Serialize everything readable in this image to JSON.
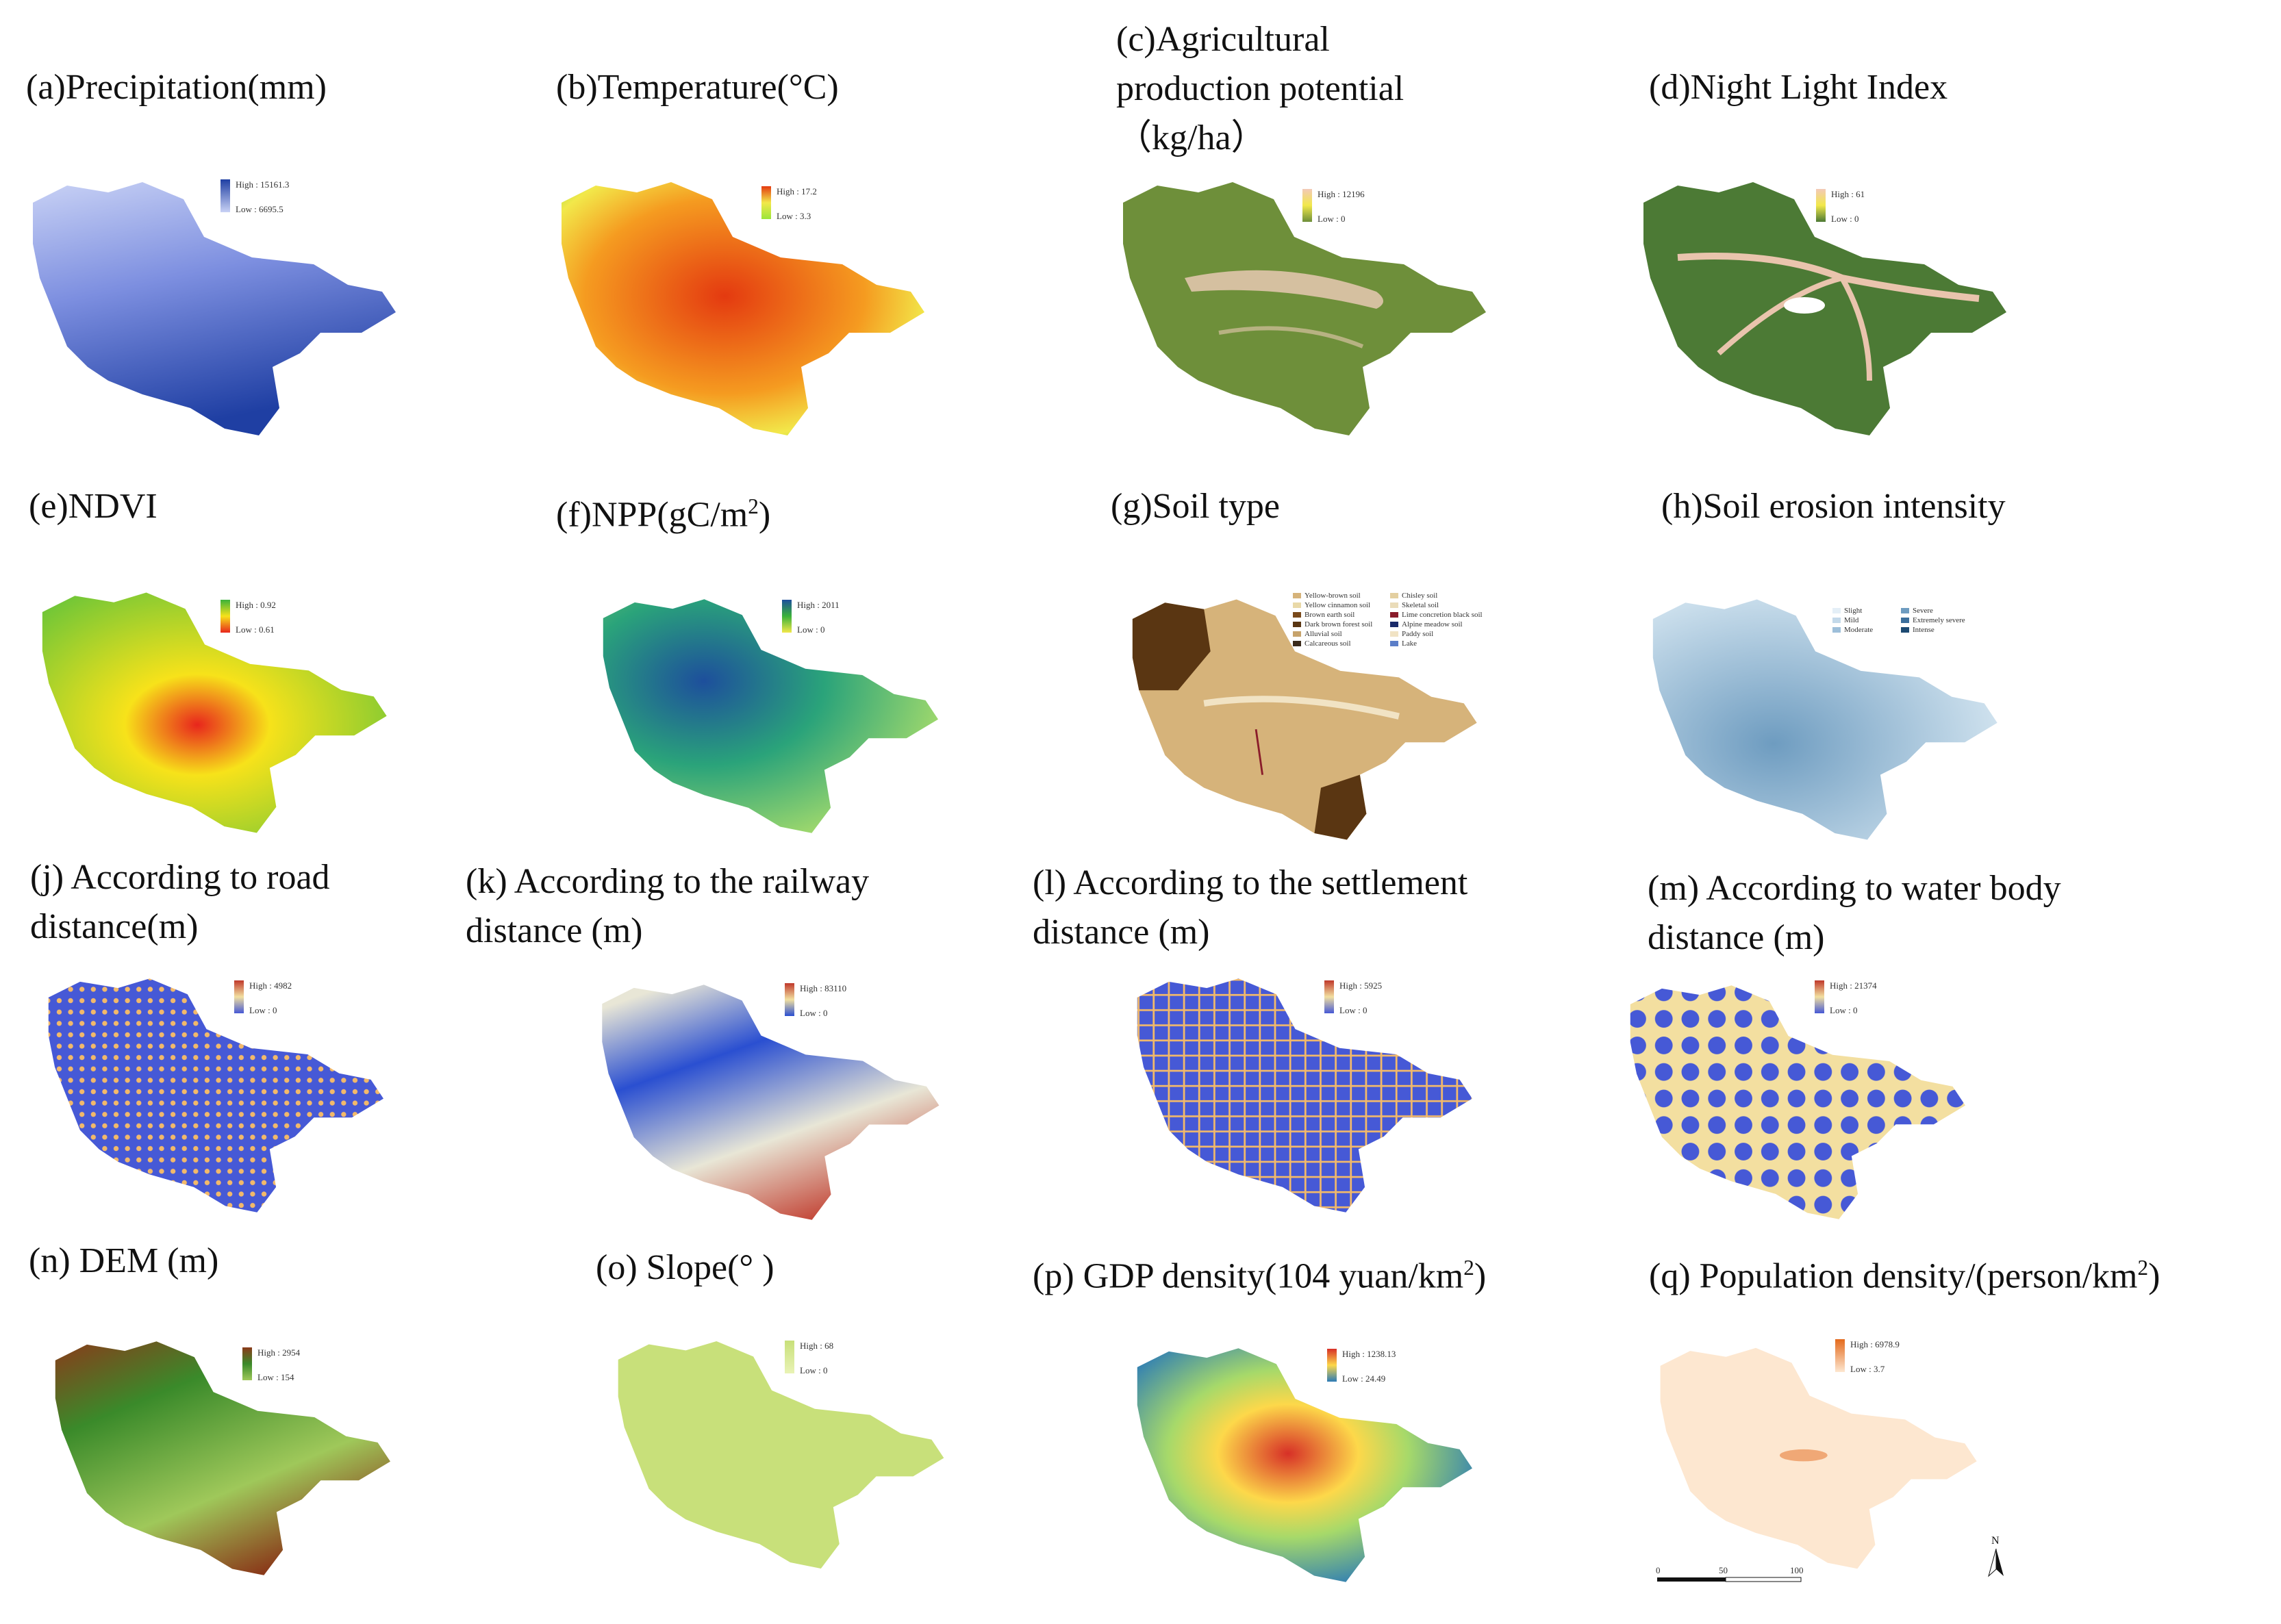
{
  "panels": [
    {
      "id": "a",
      "title": "(a)Precipitation(mm)",
      "legend": {
        "high": "High : 15161.3",
        "low": "Low : 6695.5"
      },
      "colors": [
        "#1f3fa3",
        "#c9d2f5"
      ]
    },
    {
      "id": "b",
      "title": "(b)Temperature(°C)",
      "legend": {
        "high": "High : 17.2",
        "low": "Low : 3.3"
      },
      "colors": [
        "#e43a10",
        "#9be63a"
      ]
    },
    {
      "id": "c",
      "title": "(c)Agricultural\nproduction potential\n（kg/ha）",
      "legend": {
        "high": "High : 12196",
        "low": "Low : 0"
      },
      "colors": [
        "#f3c9b8",
        "#6e8f3a"
      ]
    },
    {
      "id": "d",
      "title": "(d)Night Light Index",
      "legend": {
        "high": "High : 61",
        "low": "Low : 0"
      },
      "colors": [
        "#f3c9b8",
        "#4c7a35"
      ]
    },
    {
      "id": "e",
      "title": "(e)NDVI",
      "legend": {
        "high": "High : 0.92",
        "low": "Low : 0.61"
      },
      "colors": [
        "#3ab23a",
        "#e8261c"
      ]
    },
    {
      "id": "f",
      "title": "(f)NPP(gC/m²)",
      "legend": {
        "high": "High : 2011",
        "low": "Low : 0"
      },
      "colors": [
        "#1d4f9c",
        "#b6e36a"
      ]
    },
    {
      "id": "g",
      "title": "(g)Soil type",
      "legend_items": [
        "Yellow-brown soil",
        "Yellow cinnamon soil",
        "Brown earth soil",
        "Dark brown forest soil",
        "Alluvial soil",
        "Calcareous soil",
        "Chisley soil",
        "Skeletal soil",
        "Lime concretion black soil",
        "Alpine meadow soil",
        "Paddy soil",
        "Lake"
      ],
      "colors": [
        "#d6b37a",
        "#5a3612"
      ]
    },
    {
      "id": "h",
      "title": "(h)Soil erosion intensity",
      "legend_items": [
        "Slight",
        "Mild",
        "Moderate",
        "Severe",
        "Extremely severe",
        "Intense"
      ],
      "colors": [
        "#d5e6f1",
        "#6e9cc0"
      ]
    },
    {
      "id": "j",
      "title": "(j) According to road\ndistance(m)",
      "legend": {
        "high": "High : 4982",
        "low": "Low : 0"
      },
      "colors": [
        "#c0392b",
        "#4659d6"
      ]
    },
    {
      "id": "k",
      "title": "(k) According to the railway\ndistance (m)",
      "legend": {
        "high": "High : 83110",
        "low": "Low : 0"
      },
      "colors": [
        "#c0392b",
        "#2a4fd1"
      ]
    },
    {
      "id": "l",
      "title": "(l) According to the settlement\ndistance (m)",
      "legend": {
        "high": "High : 5925",
        "low": "Low : 0"
      },
      "colors": [
        "#c0392b",
        "#4659d6"
      ]
    },
    {
      "id": "m",
      "title": "(m) According to water body\ndistance (m)",
      "legend": {
        "high": "High : 21374",
        "low": "Low : 0"
      },
      "colors": [
        "#c0392b",
        "#4659d6"
      ]
    },
    {
      "id": "n",
      "title": "(n) DEM (m)",
      "legend": {
        "high": "High : 2954",
        "low": "Low : 154"
      },
      "colors": [
        "#8a3a1a",
        "#3a8a2a"
      ]
    },
    {
      "id": "o",
      "title": "(o) Slope(°  )",
      "legend": {
        "high": "High : 68",
        "low": "Low : 0"
      },
      "colors": [
        "#c8e07a",
        "#e9f3b5"
      ]
    },
    {
      "id": "p",
      "title": "(p) GDP density(104 yuan/km²)",
      "legend": {
        "high": "High : 1238.13",
        "low": "Low : 24.49"
      },
      "colors": [
        "#d73027",
        "#2c7bb6"
      ]
    },
    {
      "id": "q",
      "title": "(q) Population density/(person/km²)",
      "legend": {
        "high": "High : 6978.9",
        "low": "Low : 3.7"
      },
      "colors": [
        "#e46a1c",
        "#fde7d0"
      ]
    }
  ],
  "north_arrow": "N",
  "scale_bar": [
    "0",
    "50",
    "100"
  ]
}
